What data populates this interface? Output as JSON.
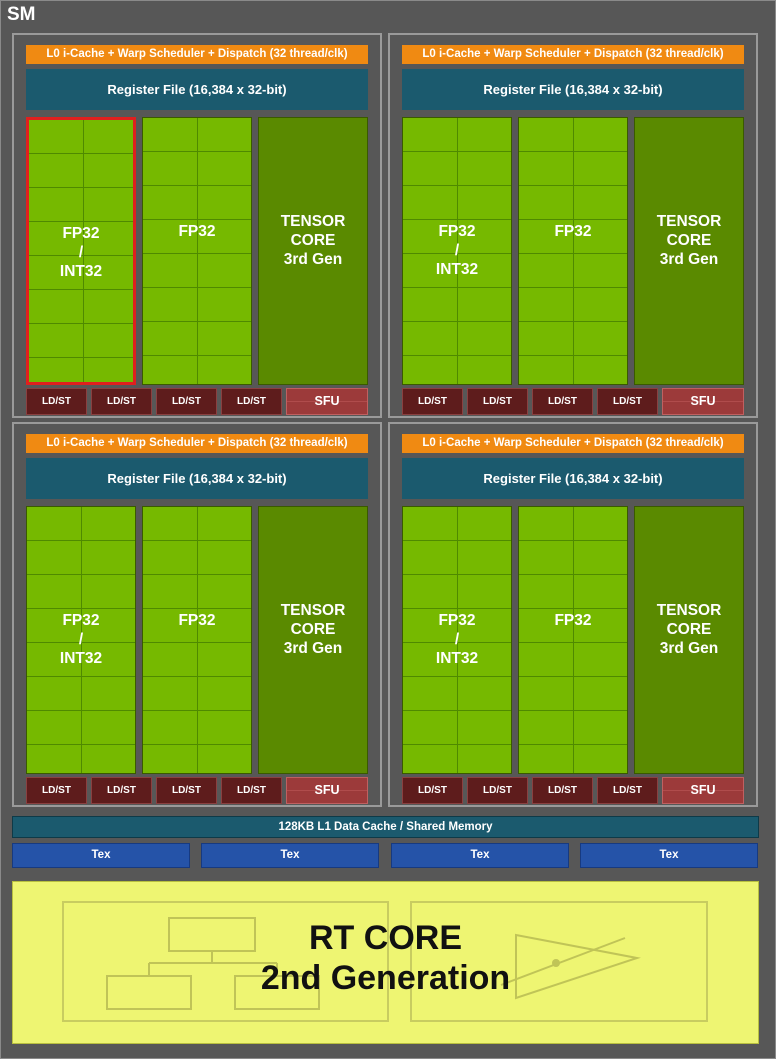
{
  "sm_label": "SM",
  "partition": {
    "l0_label": "L0 i-Cache + Warp Scheduler + Dispatch (32 thread/clk)",
    "register_file_label": "Register File (16,384 x 32-bit)",
    "fp32_int32_label": "FP32\n/\nINT32",
    "fp32_label": "FP32",
    "tensor_core_label": "TENSOR\nCORE\n3rd Gen",
    "ldst_label": "LD/ST",
    "sfu_label": "SFU"
  },
  "l1_cache_label": "128KB L1 Data Cache / Shared Memory",
  "tex_label": "Tex",
  "rt_core_label": "RT CORE\n2nd Generation",
  "colors": {
    "background": "#575757",
    "l0_orange": "#f08a12",
    "register_teal": "#1b5a6e",
    "fp_green": "#76b900",
    "tensor_green": "#5a8a00",
    "ldst_red": "#5e1c1c",
    "sfu_red": "#9c3a3a",
    "tex_blue": "#2553a8",
    "rt_yellow": "#eef572",
    "highlight_red": "#e0201e"
  }
}
